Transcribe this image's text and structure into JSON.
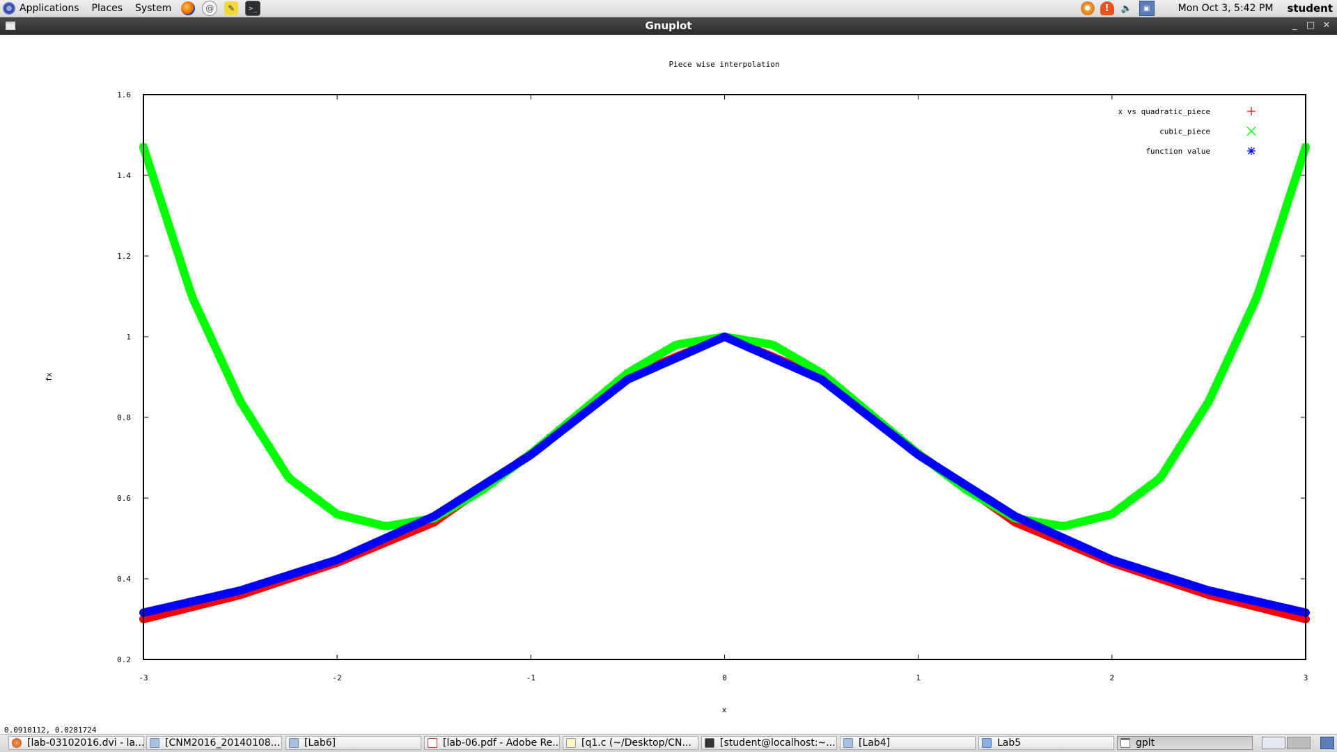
{
  "top_panel": {
    "menus": [
      "Applications",
      "Places",
      "System"
    ],
    "launchers": [
      "firefox-icon",
      "mail-icon",
      "notes-icon",
      "terminal-icon"
    ],
    "tray": [
      "updates-icon",
      "alert-icon",
      "volume-icon",
      "network-icon"
    ],
    "clock": "Mon Oct  3,  5:42 PM",
    "user": "student"
  },
  "window": {
    "title": "Gnuplot"
  },
  "coords": "0.0910112,  0.0281724",
  "chart_data": {
    "type": "scatter",
    "title": "Piece wise interpolation",
    "xlabel": "x",
    "ylabel": "fx",
    "xlim": [
      -3,
      3
    ],
    "ylim": [
      0.2,
      1.6
    ],
    "x_ticks": [
      -3,
      -2,
      -1,
      0,
      1,
      2,
      3
    ],
    "y_ticks": [
      0.2,
      0.4,
      0.6,
      0.8,
      1,
      1.2,
      1.4,
      1.6
    ],
    "x_tick_labels": [
      "-3",
      "-2",
      "-1",
      "0",
      "1",
      "2",
      "3"
    ],
    "y_tick_labels": [
      "0.2",
      "0.4",
      "0.6",
      "0.8",
      "1",
      "1.2",
      "1.4",
      "1.6"
    ],
    "legend_position": "top-right",
    "series": [
      {
        "name": "x vs quadratic_piece",
        "marker": "+",
        "color": "#ff0000",
        "x": [
          -3,
          -2.5,
          -2,
          -1.5,
          -1,
          -0.5,
          0,
          0.5,
          1,
          1.5,
          2,
          2.5,
          3
        ],
        "y": [
          0.3,
          0.36,
          0.44,
          0.54,
          0.71,
          0.9,
          1.0,
          0.9,
          0.71,
          0.54,
          0.44,
          0.36,
          0.3
        ]
      },
      {
        "name": "cubic_piece",
        "marker": "x",
        "color": "#00ff00",
        "x": [
          -3,
          -2.75,
          -2.5,
          -2.25,
          -2,
          -1.75,
          -1.5,
          -1.25,
          -1,
          -0.75,
          -0.5,
          -0.25,
          0,
          0.25,
          0.5,
          0.75,
          1,
          1.25,
          1.5,
          1.75,
          2,
          2.25,
          2.5,
          2.75,
          3
        ],
        "y": [
          1.47,
          1.1,
          0.84,
          0.65,
          0.56,
          0.53,
          0.55,
          0.62,
          0.71,
          0.81,
          0.91,
          0.98,
          1.0,
          0.98,
          0.91,
          0.81,
          0.71,
          0.62,
          0.55,
          0.53,
          0.56,
          0.65,
          0.84,
          1.1,
          1.47
        ]
      },
      {
        "name": "function value",
        "marker": "*",
        "color": "#0000ff",
        "x": [
          -3,
          -2.5,
          -2,
          -1.5,
          -1,
          -0.5,
          0,
          0.5,
          1,
          1.5,
          2,
          2.5,
          3
        ],
        "y": [
          0.316,
          0.371,
          0.447,
          0.555,
          0.707,
          0.894,
          1.0,
          0.894,
          0.707,
          0.555,
          0.447,
          0.371,
          0.316
        ]
      }
    ]
  },
  "taskbar": {
    "tasks": [
      {
        "label": "[lab-03102016.dvi - la...",
        "icon": "viewer"
      },
      {
        "label": "[CNM2016_20140108...",
        "icon": "folder"
      },
      {
        "label": "[Lab6]",
        "icon": "folder"
      },
      {
        "label": "[lab-06.pdf - Adobe Re...",
        "icon": "pdf"
      },
      {
        "label": "[q1.c (~/Desktop/CN...",
        "icon": "edit"
      },
      {
        "label": "[student@localhost:~...",
        "icon": "term"
      },
      {
        "label": "[Lab4]",
        "icon": "folder"
      },
      {
        "label": "Lab5",
        "icon": "folder-open"
      },
      {
        "label": "gplt",
        "icon": "window"
      }
    ]
  }
}
